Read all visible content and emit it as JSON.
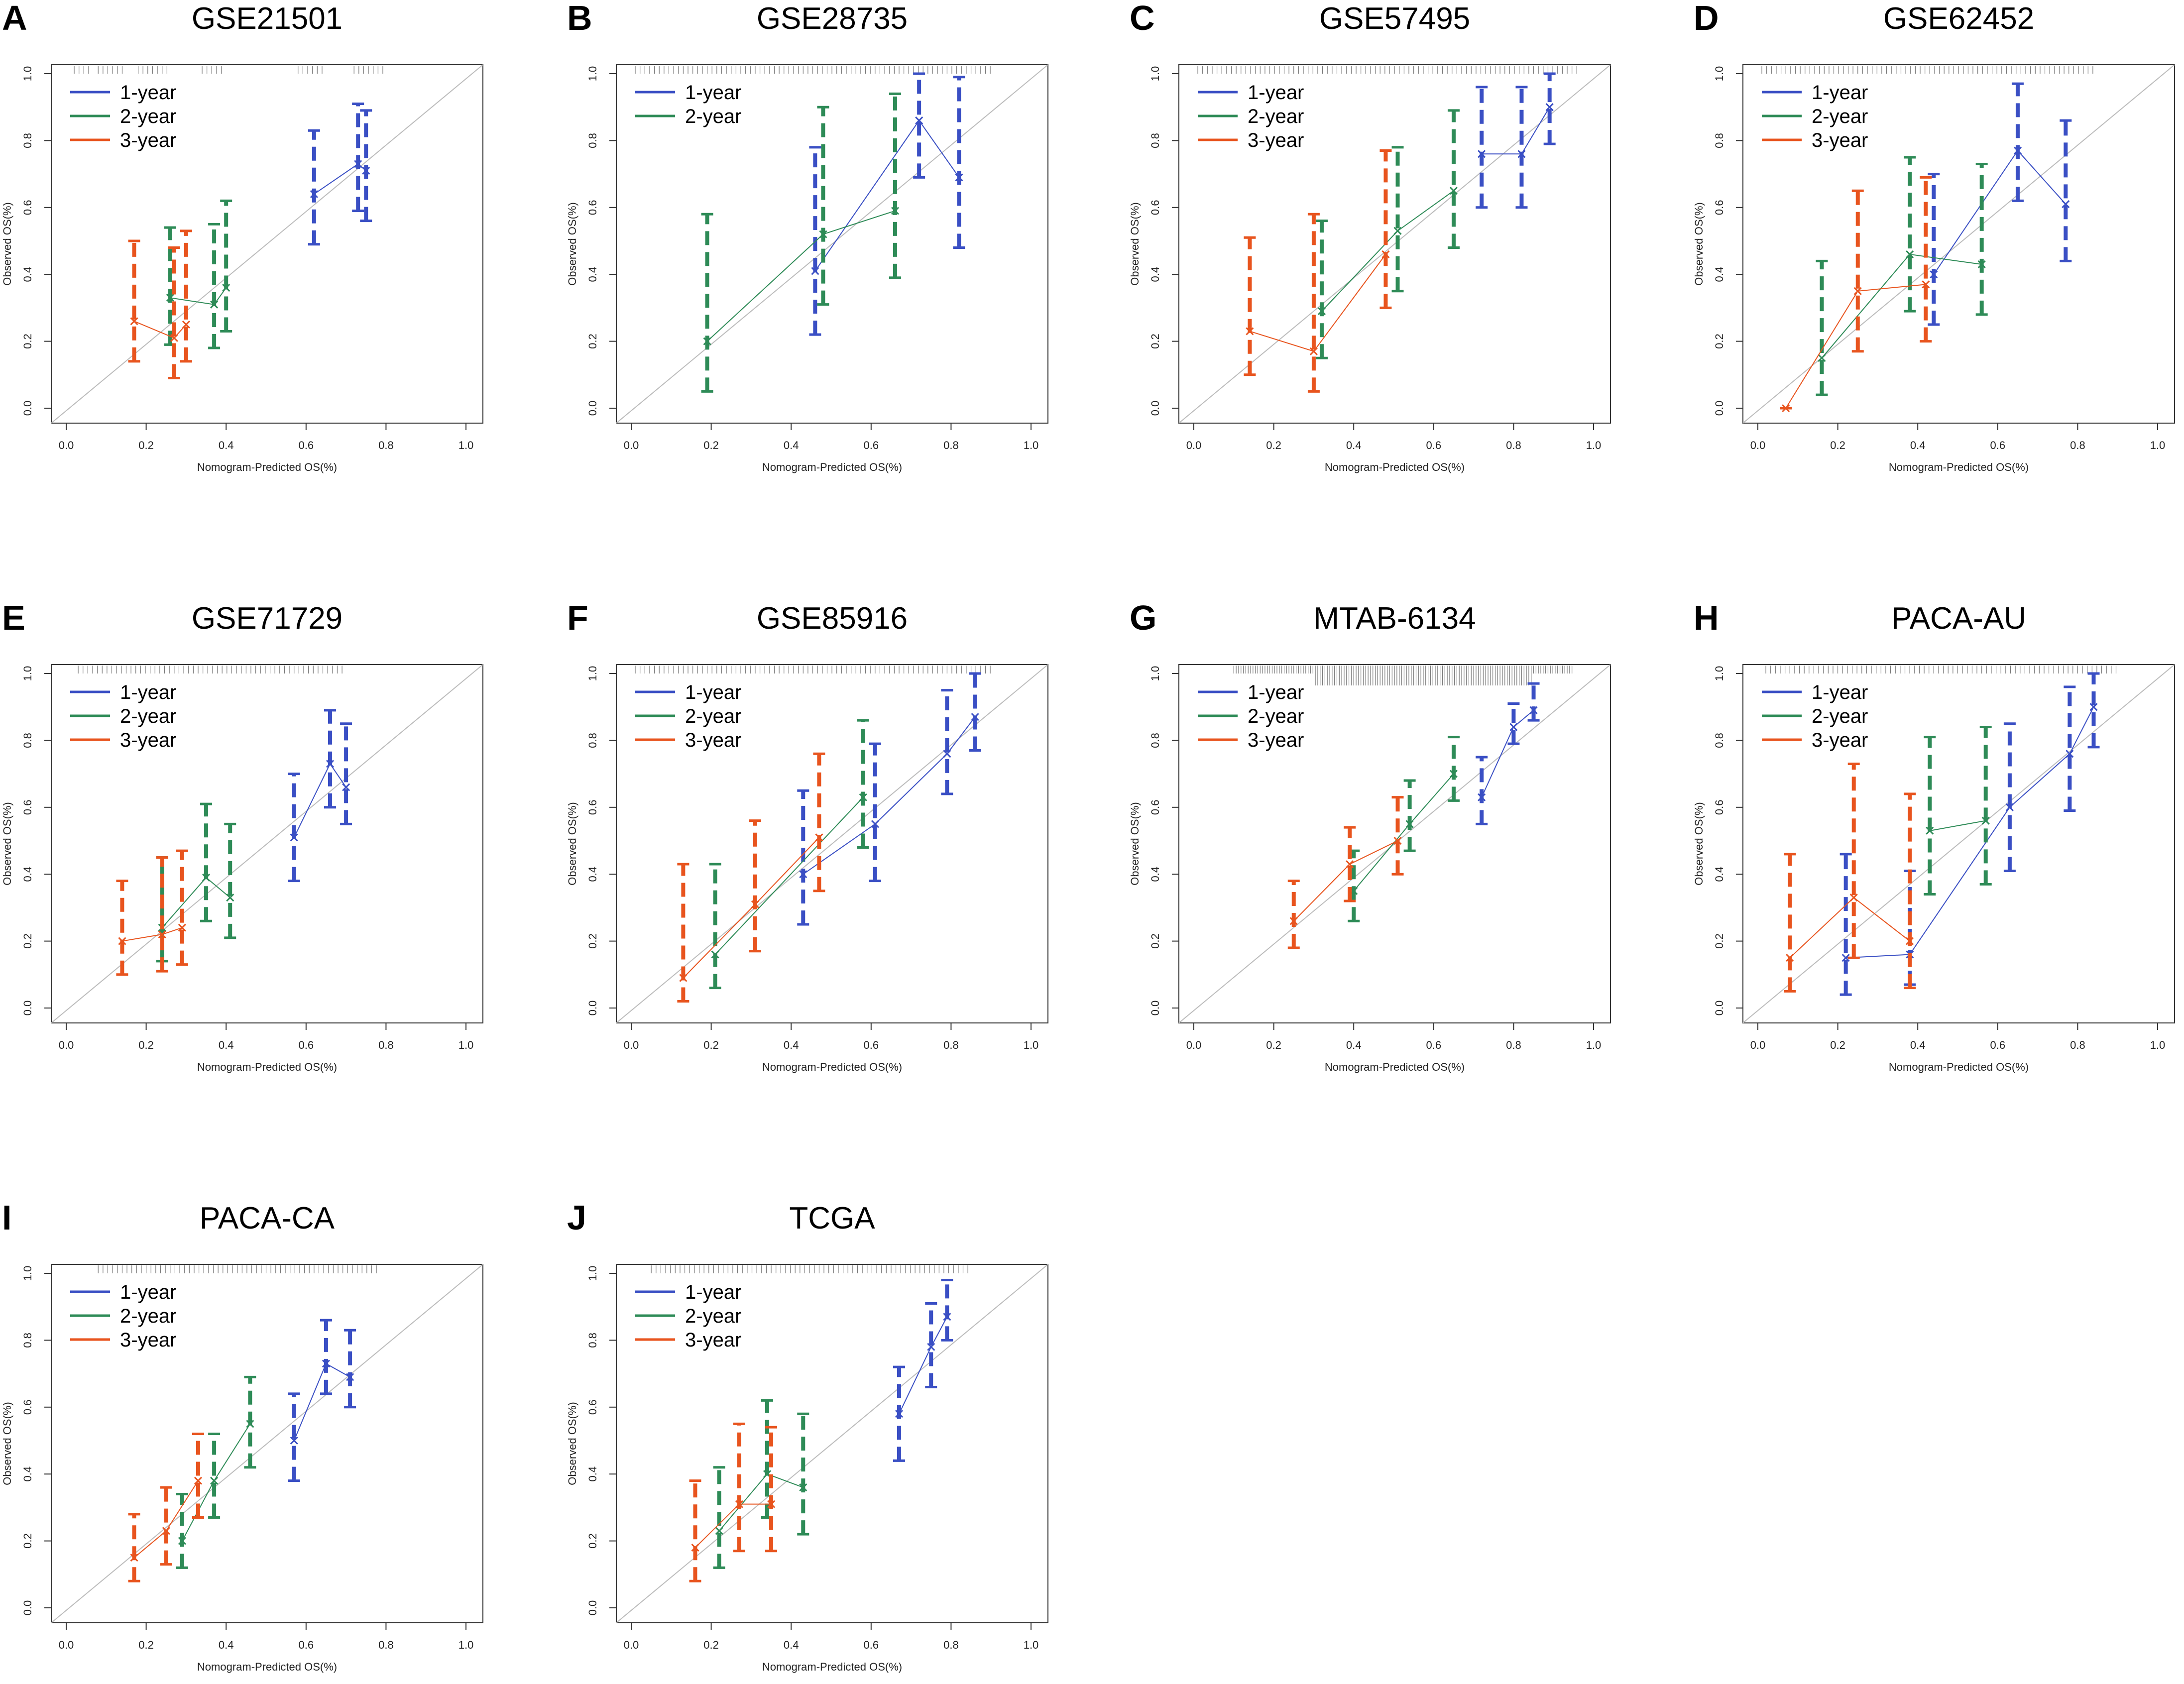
{
  "colors": {
    "one_year": "#3A4FC4",
    "two_year": "#2E8B57",
    "three_year": "#E8541E",
    "diagonal": "#BBBBBB",
    "frame": "#333333",
    "rug": "#777777"
  },
  "common": {
    "xlabel": "Nomogram-Predicted OS(%)",
    "ylabel": "Observed OS(%)",
    "ticks": [
      "0.0",
      "0.2",
      "0.4",
      "0.6",
      "0.8",
      "1.0"
    ],
    "legend_position": "top-left"
  },
  "chart_data": [
    {
      "type": "line",
      "panel": "A",
      "title": "GSE21501",
      "xlim": [
        0,
        1
      ],
      "ylim": [
        0,
        1
      ],
      "rug": [
        [
          0.02,
          0.06
        ],
        [
          0.08,
          0.14
        ],
        [
          0.18,
          0.26
        ],
        [
          0.34,
          0.4
        ],
        [
          0.58,
          0.64
        ],
        [
          0.72,
          0.8
        ]
      ],
      "series": [
        {
          "name": "1-year",
          "points": [
            [
              0.62,
              0.64,
              0.49,
              0.83
            ],
            [
              0.73,
              0.73,
              0.59,
              0.91
            ],
            [
              0.75,
              0.71,
              0.56,
              0.89
            ]
          ]
        },
        {
          "name": "2-year",
          "points": [
            [
              0.26,
              0.33,
              0.19,
              0.54
            ],
            [
              0.37,
              0.31,
              0.18,
              0.55
            ],
            [
              0.4,
              0.36,
              0.23,
              0.62
            ]
          ]
        },
        {
          "name": "3-year",
          "points": [
            [
              0.17,
              0.26,
              0.14,
              0.5
            ],
            [
              0.27,
              0.21,
              0.09,
              0.48
            ],
            [
              0.3,
              0.25,
              0.14,
              0.53
            ]
          ]
        }
      ]
    },
    {
      "type": "line",
      "panel": "B",
      "title": "GSE28735",
      "xlim": [
        0,
        1
      ],
      "ylim": [
        0,
        1
      ],
      "rug": [
        [
          0.01,
          0.9
        ]
      ],
      "series": [
        {
          "name": "1-year",
          "points": [
            [
              0.46,
              0.41,
              0.22,
              0.78
            ],
            [
              0.72,
              0.86,
              0.69,
              1.0
            ],
            [
              0.82,
              0.69,
              0.48,
              0.99
            ]
          ]
        },
        {
          "name": "2-year",
          "points": [
            [
              0.19,
              0.2,
              0.05,
              0.58
            ],
            [
              0.48,
              0.52,
              0.31,
              0.9
            ],
            [
              0.66,
              0.59,
              0.39,
              0.94
            ]
          ]
        }
      ]
    },
    {
      "type": "line",
      "panel": "C",
      "title": "GSE57495",
      "xlim": [
        0,
        1
      ],
      "ylim": [
        0,
        1
      ],
      "rug": [
        [
          0.01,
          0.96
        ]
      ],
      "series": [
        {
          "name": "1-year",
          "points": [
            [
              0.72,
              0.76,
              0.6,
              0.96
            ],
            [
              0.82,
              0.76,
              0.6,
              0.96
            ],
            [
              0.89,
              0.9,
              0.79,
              1.0
            ]
          ]
        },
        {
          "name": "2-year",
          "points": [
            [
              0.32,
              0.29,
              0.15,
              0.56
            ],
            [
              0.51,
              0.53,
              0.35,
              0.78
            ],
            [
              0.65,
              0.65,
              0.48,
              0.89
            ]
          ]
        },
        {
          "name": "3-year",
          "points": [
            [
              0.14,
              0.23,
              0.1,
              0.51
            ],
            [
              0.3,
              0.17,
              0.05,
              0.58
            ],
            [
              0.48,
              0.46,
              0.3,
              0.77
            ]
          ]
        }
      ]
    },
    {
      "type": "line",
      "panel": "D",
      "title": "GSE62452",
      "xlim": [
        0,
        1
      ],
      "ylim": [
        0,
        1
      ],
      "rug": [
        [
          0.01,
          0.84
        ]
      ],
      "series": [
        {
          "name": "1-year",
          "points": [
            [
              0.44,
              0.4,
              0.25,
              0.7
            ],
            [
              0.65,
              0.77,
              0.62,
              0.97
            ],
            [
              0.77,
              0.61,
              0.44,
              0.86
            ]
          ]
        },
        {
          "name": "2-year",
          "points": [
            [
              0.16,
              0.15,
              0.04,
              0.44
            ],
            [
              0.38,
              0.46,
              0.29,
              0.75
            ],
            [
              0.56,
              0.43,
              0.28,
              0.73
            ]
          ]
        },
        {
          "name": "3-year",
          "points": [
            [
              0.07,
              0.0,
              0.0,
              0.0
            ],
            [
              0.25,
              0.35,
              0.17,
              0.65
            ],
            [
              0.42,
              0.37,
              0.2,
              0.69
            ]
          ]
        }
      ]
    },
    {
      "type": "line",
      "panel": "E",
      "title": "GSE71729",
      "xlim": [
        0,
        1
      ],
      "ylim": [
        0,
        1
      ],
      "rug": [
        [
          0.03,
          0.7
        ]
      ],
      "series": [
        {
          "name": "1-year",
          "points": [
            [
              0.57,
              0.51,
              0.38,
              0.7
            ],
            [
              0.66,
              0.73,
              0.6,
              0.89
            ],
            [
              0.7,
              0.66,
              0.55,
              0.85
            ]
          ]
        },
        {
          "name": "2-year",
          "points": [
            [
              0.24,
              0.24,
              0.14,
              0.45
            ],
            [
              0.35,
              0.39,
              0.26,
              0.61
            ],
            [
              0.41,
              0.33,
              0.21,
              0.55
            ]
          ]
        },
        {
          "name": "3-year",
          "points": [
            [
              0.14,
              0.2,
              0.1,
              0.38
            ],
            [
              0.24,
              0.22,
              0.11,
              0.45
            ],
            [
              0.29,
              0.24,
              0.13,
              0.47
            ]
          ]
        }
      ]
    },
    {
      "type": "line",
      "panel": "F",
      "title": "GSE85916",
      "xlim": [
        0,
        1
      ],
      "ylim": [
        0,
        1
      ],
      "rug": [
        [
          0.01,
          0.9
        ]
      ],
      "series": [
        {
          "name": "1-year",
          "points": [
            [
              0.43,
              0.4,
              0.25,
              0.65
            ],
            [
              0.61,
              0.55,
              0.38,
              0.79
            ],
            [
              0.79,
              0.76,
              0.64,
              0.95
            ],
            [
              0.86,
              0.87,
              0.77,
              1.0
            ]
          ]
        },
        {
          "name": "2-year",
          "points": [
            [
              0.21,
              0.16,
              0.06,
              0.43
            ],
            [
              0.58,
              0.63,
              0.48,
              0.86
            ]
          ]
        },
        {
          "name": "3-year",
          "points": [
            [
              0.13,
              0.09,
              0.02,
              0.43
            ],
            [
              0.31,
              0.31,
              0.17,
              0.56
            ],
            [
              0.47,
              0.51,
              0.35,
              0.76
            ]
          ]
        }
      ]
    },
    {
      "type": "line",
      "panel": "G",
      "title": "MTAB-6134",
      "xlim": [
        0,
        1
      ],
      "ylim": [
        0,
        1
      ],
      "rug": [
        [
          0.1,
          0.95
        ]
      ],
      "series": [
        {
          "name": "1-year",
          "points": [
            [
              0.72,
              0.63,
              0.55,
              0.75
            ],
            [
              0.8,
              0.84,
              0.79,
              0.91
            ],
            [
              0.85,
              0.89,
              0.86,
              0.97
            ]
          ]
        },
        {
          "name": "2-year",
          "points": [
            [
              0.4,
              0.35,
              0.26,
              0.47
            ],
            [
              0.54,
              0.55,
              0.47,
              0.68
            ],
            [
              0.65,
              0.7,
              0.62,
              0.81
            ]
          ]
        },
        {
          "name": "3-year",
          "points": [
            [
              0.25,
              0.26,
              0.18,
              0.38
            ],
            [
              0.39,
              0.43,
              0.32,
              0.54
            ],
            [
              0.51,
              0.5,
              0.4,
              0.63
            ]
          ]
        }
      ]
    },
    {
      "type": "line",
      "panel": "H",
      "title": "PACA-AU",
      "xlim": [
        0,
        1
      ],
      "ylim": [
        0,
        1
      ],
      "rug": [
        [
          0.02,
          0.9
        ]
      ],
      "series": [
        {
          "name": "1-year",
          "points": [
            [
              0.22,
              0.15,
              0.04,
              0.46
            ],
            [
              0.38,
              0.16,
              0.07,
              0.41
            ],
            [
              0.63,
              0.6,
              0.41,
              0.85
            ],
            [
              0.78,
              0.76,
              0.59,
              0.96
            ],
            [
              0.84,
              0.9,
              0.78,
              1.0
            ]
          ]
        },
        {
          "name": "2-year",
          "points": [
            [
              0.43,
              0.53,
              0.34,
              0.81
            ],
            [
              0.57,
              0.56,
              0.37,
              0.84
            ]
          ]
        },
        {
          "name": "3-year",
          "points": [
            [
              0.08,
              0.15,
              0.05,
              0.46
            ],
            [
              0.24,
              0.33,
              0.15,
              0.73
            ],
            [
              0.38,
              0.2,
              0.06,
              0.64
            ]
          ]
        }
      ]
    },
    {
      "type": "line",
      "panel": "I",
      "title": "PACA-CA",
      "xlim": [
        0,
        1
      ],
      "ylim": [
        0,
        1
      ],
      "rug": [
        [
          0.08,
          0.78
        ]
      ],
      "series": [
        {
          "name": "1-year",
          "points": [
            [
              0.57,
              0.5,
              0.38,
              0.64
            ],
            [
              0.65,
              0.73,
              0.64,
              0.86
            ],
            [
              0.71,
              0.69,
              0.6,
              0.83
            ]
          ]
        },
        {
          "name": "2-year",
          "points": [
            [
              0.29,
              0.2,
              0.12,
              0.34
            ],
            [
              0.37,
              0.38,
              0.27,
              0.52
            ],
            [
              0.46,
              0.55,
              0.42,
              0.69
            ]
          ]
        },
        {
          "name": "3-year",
          "points": [
            [
              0.17,
              0.15,
              0.08,
              0.28
            ],
            [
              0.25,
              0.23,
              0.13,
              0.36
            ],
            [
              0.33,
              0.38,
              0.27,
              0.52
            ]
          ]
        }
      ]
    },
    {
      "type": "line",
      "panel": "J",
      "title": "TCGA",
      "xlim": [
        0,
        1
      ],
      "ylim": [
        0,
        1
      ],
      "rug": [
        [
          0.05,
          0.85
        ]
      ],
      "series": [
        {
          "name": "1-year",
          "points": [
            [
              0.67,
              0.58,
              0.44,
              0.72
            ],
            [
              0.75,
              0.78,
              0.66,
              0.91
            ],
            [
              0.79,
              0.87,
              0.8,
              0.98
            ]
          ]
        },
        {
          "name": "2-year",
          "points": [
            [
              0.22,
              0.23,
              0.12,
              0.42
            ],
            [
              0.34,
              0.4,
              0.27,
              0.62
            ],
            [
              0.43,
              0.36,
              0.22,
              0.58
            ]
          ]
        },
        {
          "name": "3-year",
          "points": [
            [
              0.16,
              0.18,
              0.08,
              0.38
            ],
            [
              0.27,
              0.31,
              0.17,
              0.55
            ],
            [
              0.35,
              0.31,
              0.17,
              0.54
            ]
          ]
        }
      ]
    }
  ]
}
